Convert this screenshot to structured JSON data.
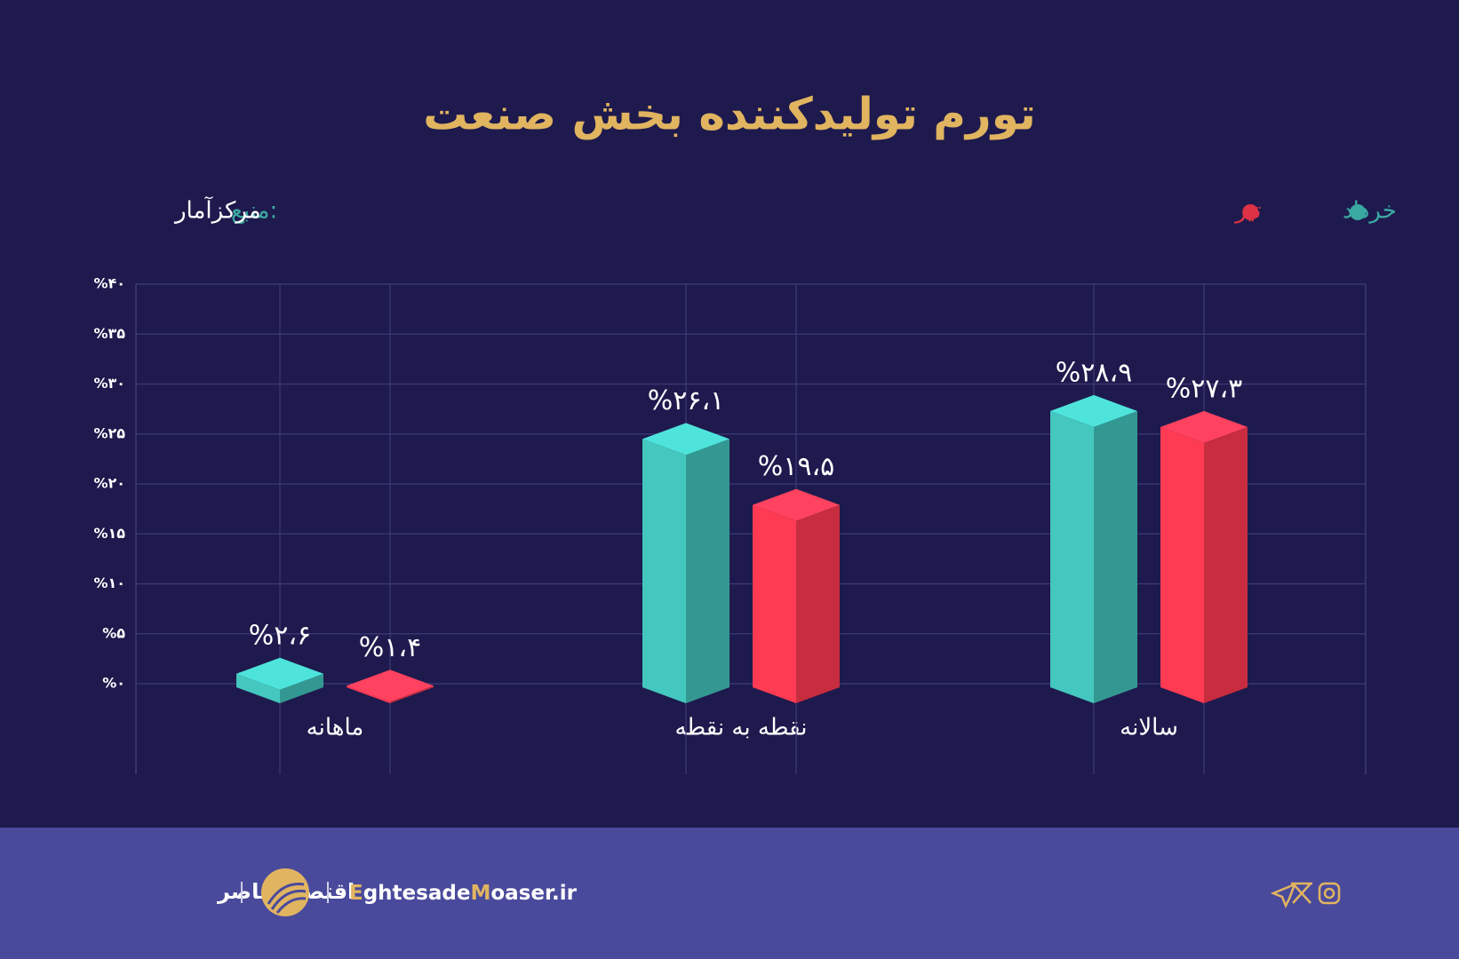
{
  "chart_data": {
    "type": "bar3d",
    "title": "تورم تولیدکننده بخش صنعت",
    "source_label": "منبع:",
    "source": "مرکزآمار",
    "categories": [
      "ماهانه",
      "نقطه به نقطه",
      "سالانه"
    ],
    "series": [
      {
        "name": "خرداد",
        "color": "#3aa9a2",
        "values": [
          2.6,
          26.1,
          28.9
        ],
        "value_labels": [
          "%۲،۶",
          "%۲۶،۱",
          "%۲۸،۹"
        ]
      },
      {
        "name": "تیر",
        "color": "#dd3146",
        "values": [
          1.4,
          19.5,
          27.3
        ],
        "value_labels": [
          "%۱،۴",
          "%۱۹،۵",
          "%۲۷،۳"
        ]
      }
    ],
    "ylim": [
      0,
      40
    ],
    "yticks": [
      {
        "value": 0,
        "label": "%۰"
      },
      {
        "value": 5,
        "label": "%۵"
      },
      {
        "value": 10,
        "label": "%۱۰"
      },
      {
        "value": 15,
        "label": "%۱۵"
      },
      {
        "value": 20,
        "label": "%۲۰"
      },
      {
        "value": 25,
        "label": "%۲۵"
      },
      {
        "value": 30,
        "label": "%۳۰"
      },
      {
        "value": 35,
        "label": "%۳۵"
      },
      {
        "value": 40,
        "label": "%۴۰"
      }
    ],
    "grid": true,
    "legend": "top-right"
  },
  "footer": {
    "brand": "اقتصادمعاصر",
    "site_parts": [
      "E",
      "ghtesade",
      "M",
      "oaser.ir"
    ]
  }
}
